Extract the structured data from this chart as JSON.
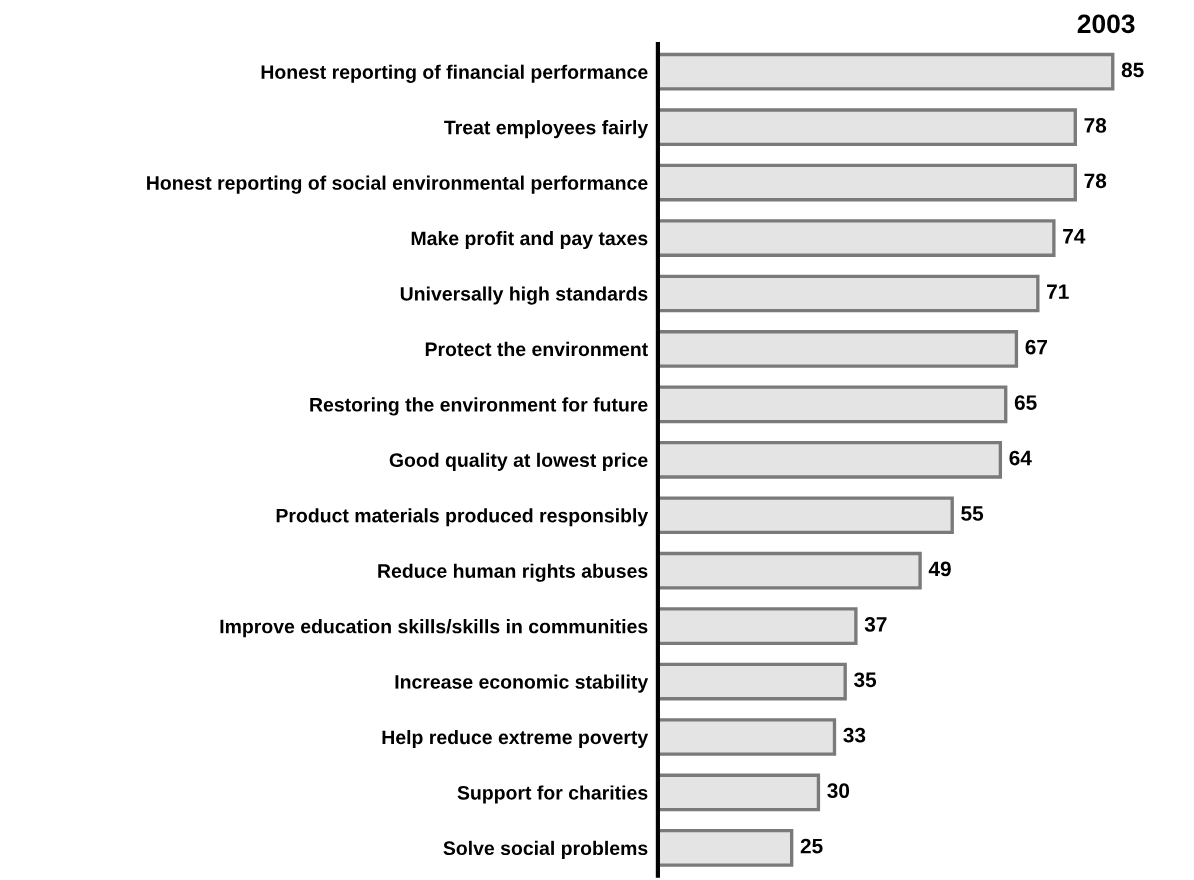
{
  "chart_data": {
    "type": "bar",
    "orientation": "horizontal",
    "title": "2003",
    "categories": [
      "Honest reporting of financial performance",
      "Treat employees fairly",
      "Honest reporting of social environmental performance",
      "Make profit and pay taxes",
      "Universally high standards",
      "Protect the environment",
      "Restoring the environment for future",
      "Good quality at lowest price",
      "Product materials produced responsibly",
      "Reduce human rights abuses",
      "Improve education skills/skills in communities",
      "Increase economic stability",
      "Help reduce extreme poverty",
      "Support for charities",
      "Solve social problems"
    ],
    "values": [
      85,
      78,
      78,
      74,
      71,
      67,
      65,
      64,
      55,
      49,
      37,
      35,
      33,
      30,
      25
    ],
    "color": "#e4e4e4",
    "data_labels": true,
    "grid": false,
    "legend": false,
    "tick_labels": "y"
  }
}
